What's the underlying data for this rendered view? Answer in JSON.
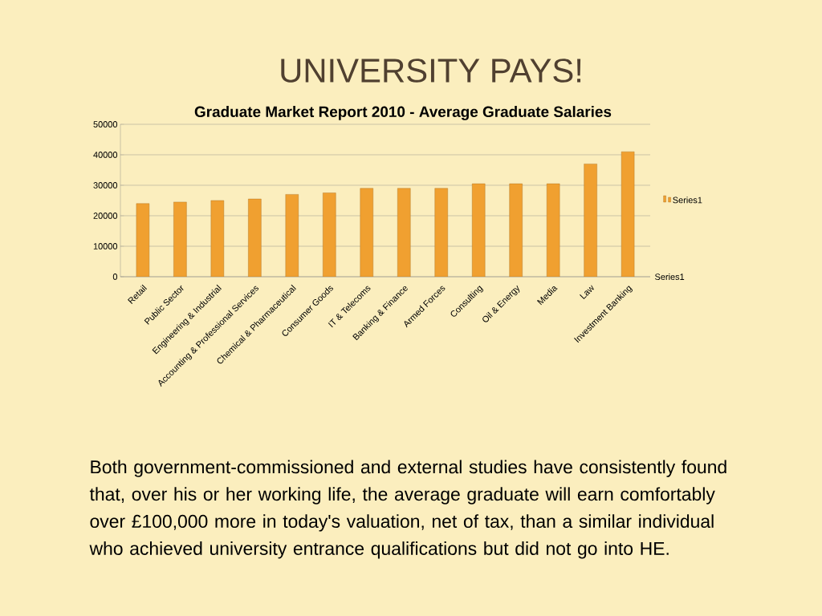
{
  "chart_data": {
    "type": "bar",
    "title": "UNIVERSITY PAYS!",
    "subtitle": "Graduate Market Report 2010 - Average Graduate Salaries",
    "categories": [
      "Retail",
      "Public Sector",
      "Engineering & Industrial",
      "Accounting & Professional Services",
      "Chemical & Pharmaceutical",
      "Consumer Goods",
      "IT & Telecoms",
      "Banking & Finance",
      "Armed Forces",
      "Consulting",
      "Oil & Energy",
      "Media",
      "Law",
      "Investment Banking"
    ],
    "series": [
      {
        "name": "Series1",
        "color": "#f0a030",
        "values": [
          24000,
          24500,
          25000,
          25500,
          27000,
          27500,
          29000,
          29000,
          29000,
          30500,
          30500,
          30500,
          37000,
          41000
        ]
      }
    ],
    "ylim": [
      0,
      50000
    ],
    "yticks": [
      0,
      10000,
      20000,
      30000,
      40000,
      50000
    ],
    "grid": "y",
    "legend": "right",
    "annotations": [
      "Series1",
      "Both government-commissioned and external studies have consistently found that, over his or her working life, the average graduate will earn comfortably over £100,000 more in today's valuation, net of tax, than a similar individual who achieved university entrance qualifications but did not go into HE."
    ]
  }
}
